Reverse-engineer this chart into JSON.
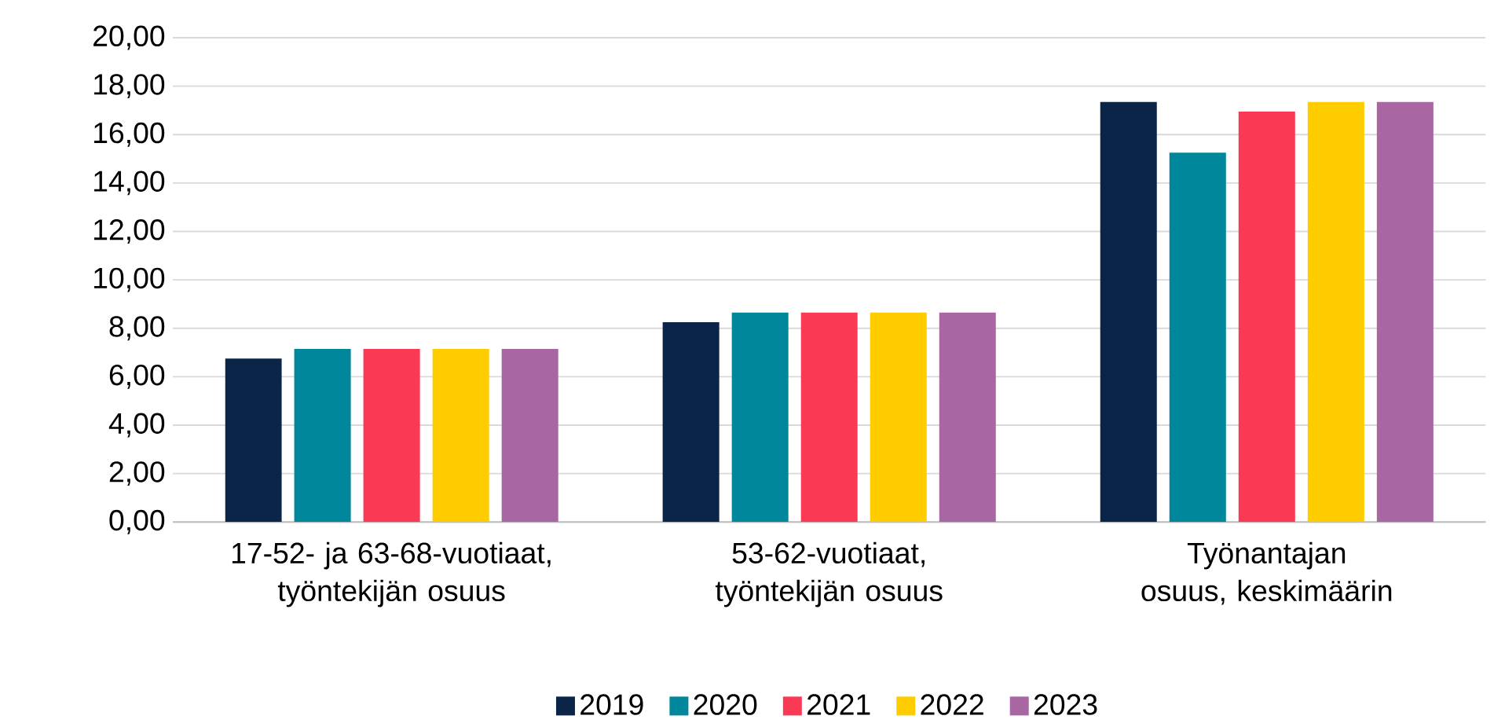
{
  "chart_data": {
    "type": "bar",
    "categories": [
      "17-52- ja 63-68-vuotiaat, työntekijän osuus",
      "53-62-vuotiaat, työntekijän osuus",
      "Työnantajan osuus, keskimäärin"
    ],
    "series": [
      {
        "name": "2019",
        "color": "#0b2548",
        "values": [
          6.75,
          8.25,
          17.35
        ]
      },
      {
        "name": "2020",
        "color": "#00879c",
        "values": [
          7.15,
          8.65,
          15.25
        ]
      },
      {
        "name": "2021",
        "color": "#fa3a55",
        "values": [
          7.15,
          8.65,
          16.95
        ]
      },
      {
        "name": "2022",
        "color": "#ffcc00",
        "values": [
          7.15,
          8.65,
          17.35
        ]
      },
      {
        "name": "2023",
        "color": "#a866a3",
        "values": [
          7.15,
          8.65,
          17.35
        ]
      }
    ],
    "ylim": [
      0,
      20
    ],
    "yticks": [
      {
        "value": 0,
        "label": "0,00"
      },
      {
        "value": 2,
        "label": "2,00"
      },
      {
        "value": 4,
        "label": "4,00"
      },
      {
        "value": 6,
        "label": "6,00"
      },
      {
        "value": 8,
        "label": "8,00"
      },
      {
        "value": 10,
        "label": "10,00"
      },
      {
        "value": 12,
        "label": "12,00"
      },
      {
        "value": 14,
        "label": "14,00"
      },
      {
        "value": 16,
        "label": "16,00"
      },
      {
        "value": 18,
        "label": "18,00"
      },
      {
        "value": 20,
        "label": "20,00"
      }
    ],
    "grid": "y",
    "legend": "bottom"
  }
}
